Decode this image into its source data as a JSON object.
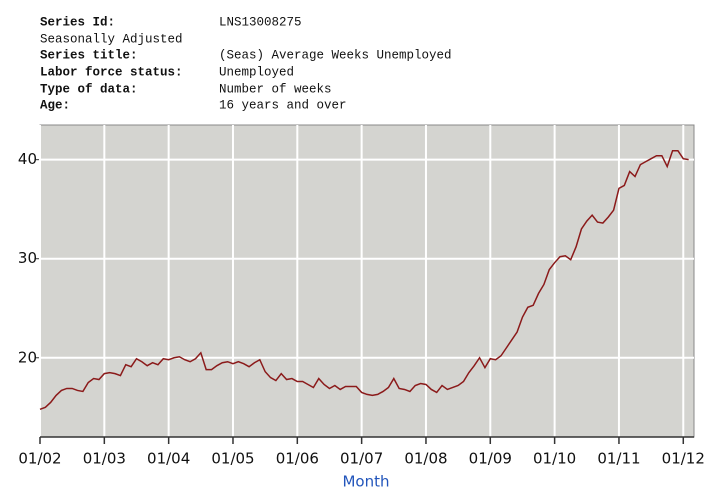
{
  "header": {
    "rows": [
      {
        "label": "Series Id:",
        "value": "LNS13008275"
      },
      {
        "label": "Seasonally Adjusted"
      },
      {
        "label": "Series title:",
        "value": "(Seas) Average Weeks Unemployed"
      },
      {
        "label": "Labor force status:",
        "value": "Unemployed"
      },
      {
        "label": "Type of data:",
        "value": "Number of weeks"
      },
      {
        "label": "Age:",
        "value": "16 years and over"
      }
    ]
  },
  "chart_data": {
    "type": "line",
    "xlabel": "Month",
    "color": "#8b1a1a",
    "background": "#d4d4d0",
    "grid": true,
    "x": [
      "2002-01",
      "2002-02",
      "2002-03",
      "2002-04",
      "2002-05",
      "2002-06",
      "2002-07",
      "2002-08",
      "2002-09",
      "2002-10",
      "2002-11",
      "2002-12",
      "2003-01",
      "2003-02",
      "2003-03",
      "2003-04",
      "2003-05",
      "2003-06",
      "2003-07",
      "2003-08",
      "2003-09",
      "2003-10",
      "2003-11",
      "2003-12",
      "2004-01",
      "2004-02",
      "2004-03",
      "2004-04",
      "2004-05",
      "2004-06",
      "2004-07",
      "2004-08",
      "2004-09",
      "2004-10",
      "2004-11",
      "2004-12",
      "2005-01",
      "2005-02",
      "2005-03",
      "2005-04",
      "2005-05",
      "2005-06",
      "2005-07",
      "2005-08",
      "2005-09",
      "2005-10",
      "2005-11",
      "2005-12",
      "2006-01",
      "2006-02",
      "2006-03",
      "2006-04",
      "2006-05",
      "2006-06",
      "2006-07",
      "2006-08",
      "2006-09",
      "2006-10",
      "2006-11",
      "2006-12",
      "2007-01",
      "2007-02",
      "2007-03",
      "2007-04",
      "2007-05",
      "2007-06",
      "2007-07",
      "2007-08",
      "2007-09",
      "2007-10",
      "2007-11",
      "2007-12",
      "2008-01",
      "2008-02",
      "2008-03",
      "2008-04",
      "2008-05",
      "2008-06",
      "2008-07",
      "2008-08",
      "2008-09",
      "2008-10",
      "2008-11",
      "2008-12",
      "2009-01",
      "2009-02",
      "2009-03",
      "2009-04",
      "2009-05",
      "2009-06",
      "2009-07",
      "2009-08",
      "2009-09",
      "2009-10",
      "2009-11",
      "2009-12",
      "2010-01",
      "2010-02",
      "2010-03",
      "2010-04",
      "2010-05",
      "2010-06",
      "2010-07",
      "2010-08",
      "2010-09",
      "2010-10",
      "2010-11",
      "2010-12",
      "2011-01",
      "2011-02",
      "2011-03",
      "2011-04",
      "2011-05",
      "2011-06",
      "2011-07",
      "2011-08",
      "2011-09",
      "2011-10",
      "2011-11",
      "2011-12",
      "2012-01",
      "2012-02"
    ],
    "values": [
      14.8,
      15.0,
      15.5,
      16.2,
      16.7,
      16.9,
      16.9,
      16.7,
      16.6,
      17.5,
      17.9,
      17.8,
      18.4,
      18.5,
      18.4,
      18.2,
      19.3,
      19.1,
      19.9,
      19.6,
      19.2,
      19.5,
      19.3,
      19.9,
      19.8,
      20.0,
      20.1,
      19.8,
      19.6,
      19.9,
      20.5,
      18.8,
      18.8,
      19.2,
      19.5,
      19.6,
      19.4,
      19.6,
      19.4,
      19.1,
      19.5,
      19.8,
      18.6,
      18.0,
      17.7,
      18.4,
      17.8,
      17.9,
      17.6,
      17.6,
      17.3,
      17.0,
      17.9,
      17.3,
      16.9,
      17.2,
      16.8,
      17.1,
      17.1,
      17.1,
      16.5,
      16.3,
      16.2,
      16.3,
      16.6,
      17.0,
      17.9,
      16.9,
      16.8,
      16.6,
      17.2,
      17.4,
      17.3,
      16.8,
      16.5,
      17.2,
      16.8,
      17.0,
      17.2,
      17.6,
      18.5,
      19.2,
      20.0,
      19.0,
      19.9,
      19.8,
      20.2,
      21.0,
      21.8,
      22.6,
      24.1,
      25.1,
      25.3,
      26.5,
      27.4,
      28.9,
      29.6,
      30.2,
      30.3,
      29.9,
      31.2,
      33.0,
      33.8,
      34.4,
      33.7,
      33.6,
      34.2,
      34.9,
      37.1,
      37.4,
      38.8,
      38.3,
      39.5,
      39.8,
      40.1,
      40.4,
      40.4,
      39.3,
      40.9,
      40.9,
      40.1,
      40.0
    ],
    "xlim": [
      "2002-01",
      "2012-03"
    ],
    "xticks": [
      {
        "value": "2002-01",
        "label": "01/02"
      },
      {
        "value": "2003-01",
        "label": "01/03"
      },
      {
        "value": "2004-01",
        "label": "01/04"
      },
      {
        "value": "2005-01",
        "label": "01/05"
      },
      {
        "value": "2006-01",
        "label": "01/06"
      },
      {
        "value": "2007-01",
        "label": "01/07"
      },
      {
        "value": "2008-01",
        "label": "01/08"
      },
      {
        "value": "2009-01",
        "label": "01/09"
      },
      {
        "value": "2010-01",
        "label": "01/10"
      },
      {
        "value": "2011-01",
        "label": "01/11"
      },
      {
        "value": "2012-01",
        "label": "01/12"
      }
    ],
    "ylim": [
      12,
      43.5
    ],
    "yticks": [
      20,
      30,
      40
    ]
  }
}
